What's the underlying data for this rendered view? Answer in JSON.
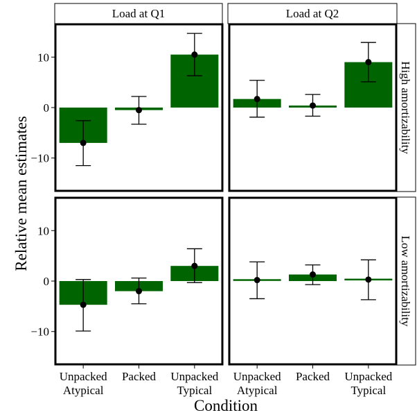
{
  "chart_data": {
    "type": "bar",
    "ylabel": "Relative mean estimates",
    "xlabel": "Condition",
    "categories": [
      "Unpacked\nAtypical",
      "Packed",
      "Unpacked\nTypical"
    ],
    "col_facets": [
      "Load at Q1",
      "Load at Q2"
    ],
    "row_facets": [
      "High amortizability",
      "Low amortizability"
    ],
    "ylim": [
      -16.5,
      16.5
    ],
    "yticks": [
      -10,
      0,
      10
    ],
    "ytick_labels": [
      "−10",
      "0",
      "10"
    ],
    "bar_color": "#006400",
    "grid": false,
    "panels": [
      {
        "row": 0,
        "col": 0,
        "values": [
          -7.0,
          -0.5,
          10.5
        ],
        "ci_low": [
          -11.5,
          -3.3,
          6.3
        ],
        "ci_high": [
          -2.6,
          2.2,
          14.7
        ]
      },
      {
        "row": 0,
        "col": 1,
        "values": [
          1.7,
          0.4,
          9.0
        ],
        "ci_low": [
          -1.9,
          -1.7,
          5.1
        ],
        "ci_high": [
          5.4,
          2.6,
          12.9
        ]
      },
      {
        "row": 1,
        "col": 0,
        "values": [
          -4.7,
          -2.0,
          3.0
        ],
        "ci_low": [
          -9.9,
          -4.5,
          -0.3
        ],
        "ci_high": [
          0.3,
          0.6,
          6.4
        ]
      },
      {
        "row": 1,
        "col": 1,
        "values": [
          0.2,
          1.3,
          0.3
        ],
        "ci_low": [
          -3.5,
          -0.7,
          -3.7
        ],
        "ci_high": [
          3.8,
          3.2,
          4.2
        ]
      }
    ]
  }
}
